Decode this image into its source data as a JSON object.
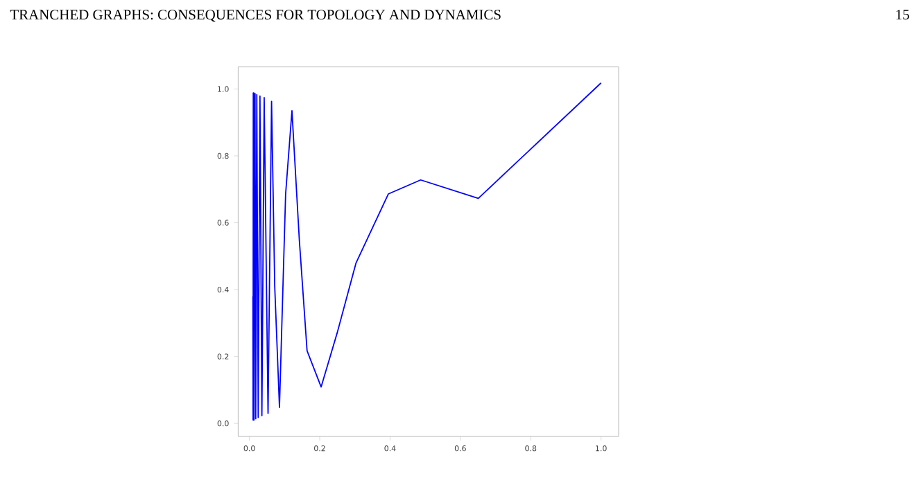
{
  "chart_data": {
    "type": "line",
    "annotations": [
      "TRANCHED GRAPHS: CONSEQUENCES FOR TOPOLOGY AND DYNAMICS",
      "15"
    ],
    "xlim": [
      -0.032,
      1.05
    ],
    "ylim": [
      -0.039,
      1.066
    ],
    "xticks": [
      {
        "value": 0.0,
        "label": "0.0"
      },
      {
        "value": 0.2,
        "label": "0.2"
      },
      {
        "value": 0.4,
        "label": "0.4"
      },
      {
        "value": 0.6,
        "label": "0.6"
      },
      {
        "value": 0.8,
        "label": "0.8"
      },
      {
        "value": 1.0,
        "label": "1.0"
      }
    ],
    "yticks": [
      {
        "value": 0.0,
        "label": "0.0"
      },
      {
        "value": 0.2,
        "label": "0.2"
      },
      {
        "value": 0.4,
        "label": "0.4"
      },
      {
        "value": 0.6,
        "label": "0.6"
      },
      {
        "value": 0.8,
        "label": "0.8"
      },
      {
        "value": 1.0,
        "label": "1.0"
      }
    ],
    "series": [
      {
        "color": "#0000ff",
        "x": [
          0.01,
          0.0105,
          0.011,
          0.0115,
          0.0125,
          0.013,
          0.016,
          0.018,
          0.021,
          0.025,
          0.03,
          0.0355,
          0.042,
          0.053,
          0.063,
          0.072,
          0.0855,
          0.103,
          0.121,
          0.142,
          0.164,
          0.204,
          0.25,
          0.303,
          0.395,
          0.487,
          0.651,
          1.0
        ],
        "values": [
          0.38,
          0.01,
          0.988,
          0.01,
          0.988,
          0.01,
          0.986,
          0.014,
          0.983,
          0.018,
          0.979,
          0.023,
          0.974,
          0.03,
          0.963,
          0.41,
          0.048,
          0.686,
          0.935,
          0.548,
          0.217,
          0.109,
          0.272,
          0.479,
          0.686,
          0.728,
          0.673,
          1.018
        ]
      }
    ]
  }
}
